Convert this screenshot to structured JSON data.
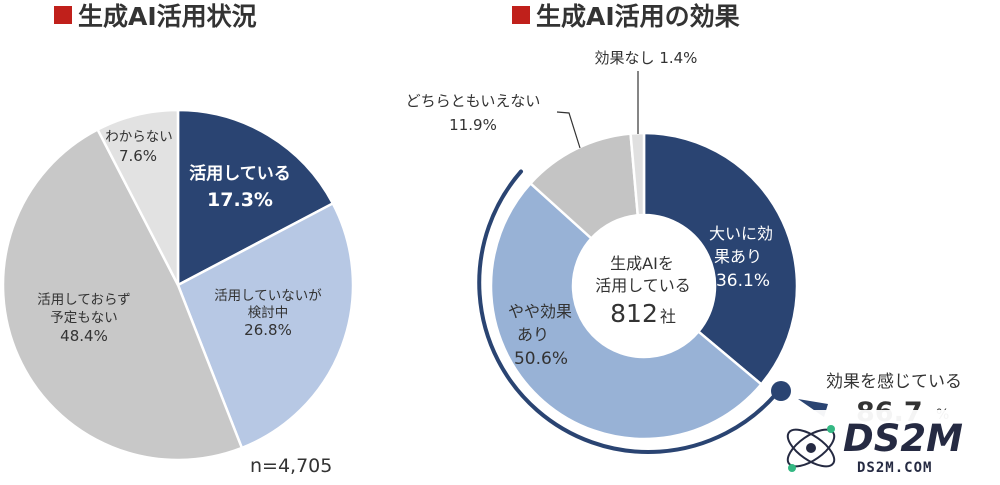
{
  "chart_data": [
    {
      "type": "pie",
      "title": "生成AI活用状況",
      "slices": [
        {
          "label": "活用している",
          "value": 17.3,
          "display": "17.3%",
          "color": "#2a4472"
        },
        {
          "label": "活用していないが検討中",
          "value": 26.8,
          "display": "26.8%",
          "color": "#b7c8e4"
        },
        {
          "label": "活用しておらず予定もない",
          "value": 48.4,
          "display": "48.4%",
          "color": "#c8c8c8"
        },
        {
          "label": "わからない",
          "value": 7.6,
          "display": "7.6%",
          "color": "#e2e2e2"
        }
      ],
      "note": "n=4,705"
    },
    {
      "type": "pie",
      "title": "生成AI活用の効果",
      "center_text": [
        "生成AIを",
        "活用している"
      ],
      "center_count": "812",
      "center_unit": "社",
      "slices": [
        {
          "label": "大いに効果あり",
          "value": 36.1,
          "display": "36.1%",
          "color": "#2a4472"
        },
        {
          "label": "やや効果あり",
          "value": 50.6,
          "display": "50.6%",
          "color": "#98b2d6"
        },
        {
          "label": "どちらともいえない",
          "value": 11.9,
          "display": "11.9%",
          "color": "#c4c4c4"
        },
        {
          "label": "効果なし",
          "value": 1.4,
          "display": "1.4%",
          "color": "#e0e0e0"
        }
      ],
      "callout": {
        "label": "効果を感じている",
        "value": "86.7",
        "unit": "%"
      }
    }
  ],
  "labels": {
    "left_title": "生成AI活用状況",
    "left_active_l1": "活用している",
    "left_active_pct": "17.3%",
    "left_considering_l1": "活用していないが",
    "left_considering_l2": "検討中",
    "left_considering_pct": "26.8%",
    "left_noplan_l1": "活用しておらず",
    "left_noplan_l2": "予定もない",
    "left_noplan_pct": "48.4%",
    "left_unknown_l1": "わからない",
    "left_unknown_pct": "7.6%",
    "left_n": "n=4,705",
    "right_title": "生成AI活用の効果",
    "right_big_l1": "大いに効",
    "right_big_l2": "果あり",
    "right_big_pct": "36.1%",
    "right_some_l1": "やや効果",
    "right_some_l2": "あり",
    "right_some_pct": "50.6%",
    "right_neutral_l1": "どちらともいえない",
    "right_neutral_pct": "11.9%",
    "right_none": "効果なし 1.4%",
    "right_center_l1": "生成AIを",
    "right_center_l2": "活用している",
    "right_center_count": "812",
    "right_center_unit": "社",
    "callout_label": "効果を感じている",
    "callout_value": "86.7",
    "callout_unit": "%"
  },
  "watermark": {
    "big": "DS2M",
    "small": "DS2M.COM"
  },
  "colors": {
    "accent_red": "#c0201b",
    "navy": "#2a4472"
  }
}
